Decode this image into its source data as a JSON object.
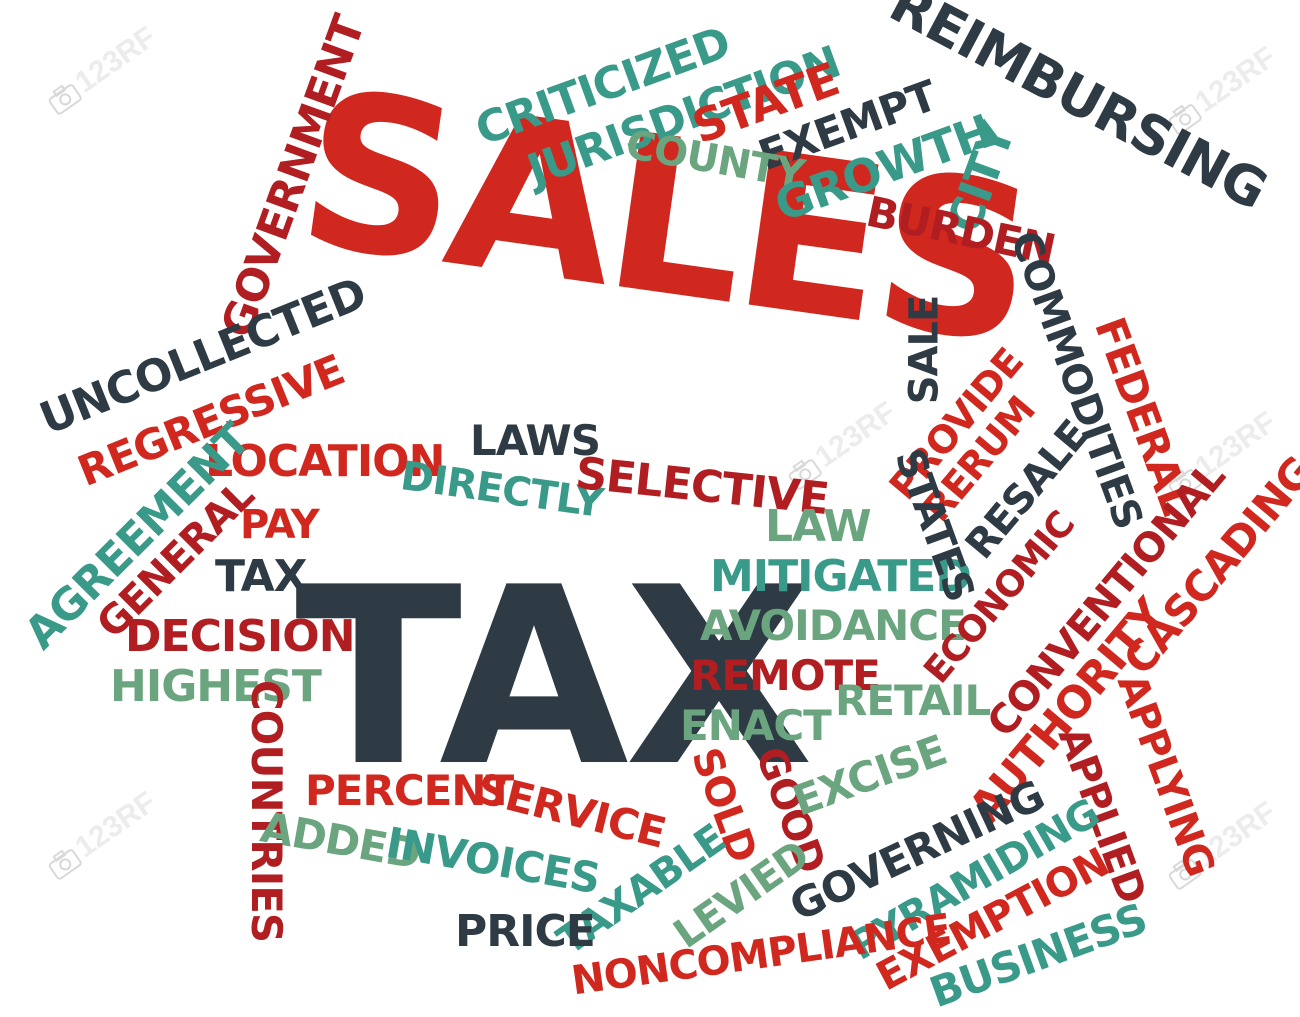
{
  "colors": {
    "red": "#d0281f",
    "dark_red": "#b01e22",
    "charcoal": "#2e3b44",
    "teal": "#3a9a8a",
    "sage": "#6aa57f",
    "watermark": "#d0d0d0"
  },
  "watermark": {
    "text": "123RF",
    "icon": "camera-icon"
  },
  "words": {
    "sales": "SALES",
    "tax_main": "TAX",
    "criticized": "CRITICIZED",
    "jurisdiction": "JURISDICTION",
    "state": "STATE",
    "reimbursing": "REIMBURSING",
    "exempt": "EXEMPT",
    "county": "COUNTY",
    "growth": "GROWTH",
    "city": "CITY",
    "burden": "BURDEN",
    "government": "GOVERNMENT",
    "uncollected": "UNCOLLECTED",
    "regressive": "REGRESSIVE",
    "sale": "SALE",
    "commodities": "COMMODITIES",
    "federal": "FEDERAL",
    "provide": "PROVIDE",
    "rerum": "RERUM",
    "resale": "RESALE",
    "states": "STATES",
    "location": "LOCATION",
    "laws": "LAWS",
    "directly": "DIRECTLY",
    "selective": "SELECTIVE",
    "agreement": "AGREEMENT",
    "general": "GENERAL",
    "pay": "PAY",
    "tax_small": "TAX",
    "law": "LAW",
    "mitigated": "MITIGATED",
    "avoidance": "AVOIDANCE",
    "economic": "ECONOMIC",
    "conventional": "CONVENTIONAL",
    "cascading": "CASCADING",
    "authority": "AUTHORITY",
    "decision": "DECISION",
    "highest": "HIGHEST",
    "remote": "REMOTE",
    "retail": "RETAIL",
    "enact": "ENACT",
    "countries": "COUNTRIES",
    "applying": "APPLYING",
    "applied": "APPLIED",
    "percent": "PERCENT",
    "service": "SERVICE",
    "sold": "SOLD",
    "good": "GOOD",
    "excise": "EXCISE",
    "governing": "GOVERNING",
    "added": "ADDED",
    "invoices": "INVOICES",
    "taxable": "TAXABLE",
    "levied": "LEVIED",
    "pyramiding": "PYRAMIDING",
    "exemption": "EXEMPTION",
    "price": "PRICE",
    "noncompliance": "NONCOMPLIANCE",
    "business": "BUSINESS"
  }
}
